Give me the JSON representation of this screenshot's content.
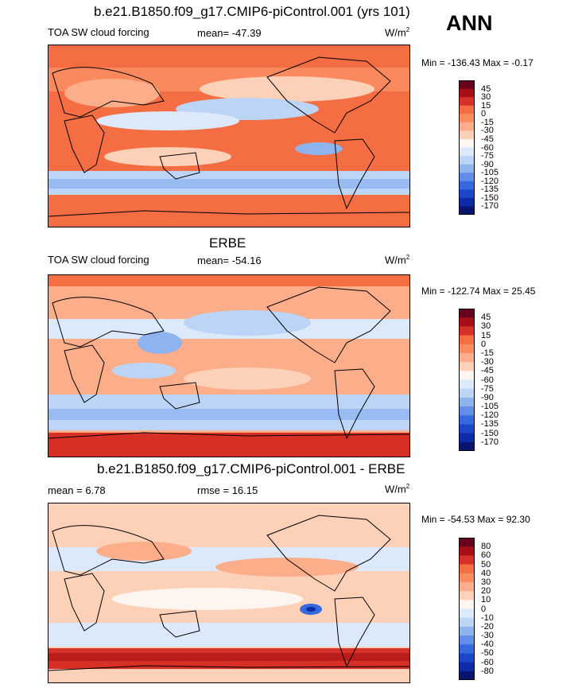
{
  "season": "ANN",
  "panels": [
    {
      "title": "b.e21.B1850.f09_g17.CMIP6-piControl.001 (yrs 101)",
      "variable": "TOA SW cloud forcing",
      "stat": "mean= -47.39",
      "units": "W/m",
      "units_sup": "2",
      "minmax": "Min = -136.43 Max =  -0.17",
      "colorbar": [
        "45",
        "30",
        "15",
        "0",
        "-15",
        "-30",
        "-45",
        "-60",
        "-75",
        "-90",
        "-105",
        "-120",
        "-135",
        "-150",
        "-170"
      ]
    },
    {
      "title": "ERBE",
      "variable": "TOA SW cloud forcing",
      "stat": "mean= -54.16",
      "units": "W/m",
      "units_sup": "2",
      "minmax": "Min = -122.74 Max =  25.45",
      "colorbar": [
        "45",
        "30",
        "15",
        "0",
        "-15",
        "-30",
        "-45",
        "-60",
        "-75",
        "-90",
        "-105",
        "-120",
        "-135",
        "-150",
        "-170"
      ]
    },
    {
      "title": "b.e21.B1850.f09_g17.CMIP6-piControl.001 - ERBE",
      "stat_left": "mean =   6.78",
      "stat": "rmse =  16.15",
      "units": "W/m",
      "units_sup": "2",
      "minmax": "Min = -54.53 Max =  92.30",
      "colorbar": [
        "80",
        "60",
        "50",
        "40",
        "30",
        "20",
        "10",
        "0",
        "-10",
        "-20",
        "-30",
        "-40",
        "-50",
        "-60",
        "-80"
      ]
    }
  ],
  "colors": {
    "scale": [
      "#67001f",
      "#a50f15",
      "#d73027",
      "#f46d43",
      "#fb8c60",
      "#fcad8a",
      "#fdd0b8",
      "#fdf5ef",
      "#dce9fb",
      "#bcd4f6",
      "#8eb4f0",
      "#5f8fe8",
      "#3769de",
      "#1b47c9",
      "#0d2ba6",
      "#08156f"
    ],
    "land_outline": "#000000"
  }
}
